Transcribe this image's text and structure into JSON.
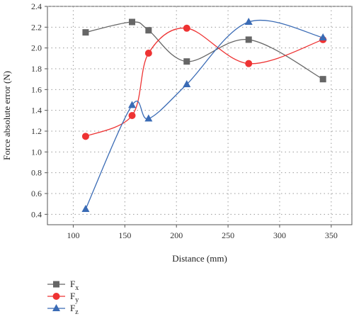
{
  "chart_data": {
    "type": "line",
    "xlabel": "Distance (mm)",
    "ylabel": "Force absolute error (N)",
    "xlim": [
      75,
      370
    ],
    "ylim": [
      0.3,
      2.4
    ],
    "x_ticks": [
      "100",
      "150",
      "200",
      "250",
      "300",
      "350"
    ],
    "y_ticks": [
      "0.4",
      "0.6",
      "0.8",
      "1.0",
      "1.2",
      "1.4",
      "1.6",
      "1.8",
      "2.0",
      "2.2",
      "2.4"
    ],
    "grid": "dotted",
    "legend_position": "bottom-left",
    "smooth": true,
    "series": [
      {
        "name": "F",
        "subscript": "x",
        "color": "#666666",
        "marker": "square",
        "x": [
          112,
          157,
          173,
          210,
          270,
          342
        ],
        "y": [
          2.15,
          2.25,
          2.17,
          1.87,
          2.08,
          1.7
        ]
      },
      {
        "name": "F",
        "subscript": "y",
        "color": "#ee3333",
        "marker": "circle",
        "x": [
          112,
          157,
          173,
          210,
          270,
          342
        ],
        "y": [
          1.15,
          1.35,
          1.95,
          2.19,
          1.85,
          2.08
        ]
      },
      {
        "name": "F",
        "subscript": "z",
        "color": "#3a6bb5",
        "marker": "triangle",
        "x": [
          112,
          157,
          173,
          210,
          270,
          342
        ],
        "y": [
          0.45,
          1.45,
          1.32,
          1.65,
          2.25,
          2.1
        ]
      }
    ]
  }
}
